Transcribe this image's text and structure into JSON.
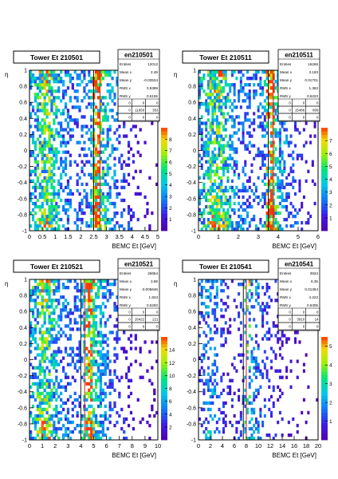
{
  "chart_data": [
    {
      "type": "heatmap",
      "title": "Tower Et 210501",
      "xlabel": "BEMC Et [GeV]",
      "ylabel": "η",
      "xlim": [
        0,
        5
      ],
      "ylim": [
        -1,
        1
      ],
      "x_ticks": [
        "0",
        "0.5",
        "1",
        "1.5",
        "2",
        "2.5",
        "3",
        "3.5",
        "4",
        "4.5",
        "5"
      ],
      "y_ticks": [
        "-1",
        "-0.8",
        "-0.6",
        "-0.4",
        "-0.2",
        "0",
        "0.2",
        "0.4",
        "0.6",
        "0.8",
        "1"
      ],
      "z_ticks": [
        "1",
        "2",
        "3",
        "4",
        "5",
        "6",
        "7",
        "8"
      ],
      "zlim": [
        0,
        9
      ],
      "cut_lines_x": [
        2.5,
        2.75
      ],
      "hot_band_x": 2.6,
      "stats": {
        "name": "en210501",
        "rows": [
          [
            "Entries",
            "12012"
          ],
          [
            "Mean x",
            "2.49"
          ],
          [
            "Mean y",
            "-0.03534"
          ],
          [
            "RMS x",
            "0.9399"
          ],
          [
            "RMS y",
            "0.6155"
          ]
        ],
        "grid": [
          [
            "0",
            "0",
            "0"
          ],
          [
            "0",
            "11650",
            "353"
          ],
          [
            "0",
            "0",
            "0"
          ]
        ]
      }
    },
    {
      "type": "heatmap",
      "title": "Tower Et 210511",
      "xlabel": "BEMC Et [GeV]",
      "ylabel": "η",
      "xlim": [
        0,
        6
      ],
      "ylim": [
        -1,
        1
      ],
      "x_ticks": [
        "0",
        "1",
        "2",
        "3",
        "4",
        "5",
        "6"
      ],
      "y_ticks": [
        "-1",
        "-0.8",
        "-0.6",
        "-0.4",
        "-0.2",
        "0",
        "0.2",
        "0.4",
        "0.6",
        "0.8",
        "1"
      ],
      "z_ticks": [
        "1",
        "2",
        "3",
        "4",
        "5",
        "6",
        "7"
      ],
      "zlim": [
        0,
        8
      ],
      "cut_lines_x": [
        3.5,
        3.75
      ],
      "hot_band_x": 3.6,
      "stats": {
        "name": "en210511",
        "rows": [
          [
            "Entries",
            "16266"
          ],
          [
            "Mean x",
            "3.193"
          ],
          [
            "Mean y",
            "0.01701"
          ],
          [
            "RMS x",
            "1.382"
          ],
          [
            "RMS y",
            "0.6223"
          ]
        ],
        "grid": [
          [
            "0",
            "0",
            "0"
          ],
          [
            "0",
            "15486",
            "809"
          ],
          [
            "0",
            "0",
            "0"
          ]
        ]
      }
    },
    {
      "type": "heatmap",
      "title": "Tower Et 210521",
      "xlabel": "BEMC Et [GeV]",
      "ylabel": "η",
      "xlim": [
        0,
        10
      ],
      "ylim": [
        -1,
        1
      ],
      "x_ticks": [
        "0",
        "1",
        "2",
        "3",
        "4",
        "5",
        "6",
        "7",
        "8",
        "9",
        "10"
      ],
      "y_ticks": [
        "-1",
        "-0.8",
        "-0.6",
        "-0.4",
        "-0.2",
        "0",
        "0.2",
        "0.4",
        "0.6",
        "0.8",
        "1"
      ],
      "z_ticks": [
        "2",
        "4",
        "6",
        "8",
        "10",
        "12",
        "14"
      ],
      "zlim": [
        0,
        16
      ],
      "cut_lines_x": [
        4.0,
        4.3
      ],
      "hot_band_x": 4.6,
      "stats": {
        "name": "en210521",
        "rows": [
          [
            "Entries",
            "26654"
          ],
          [
            "Mean x",
            "3.89"
          ],
          [
            "Mean y",
            "-0.005646"
          ],
          [
            "RMS x",
            "1.823"
          ],
          [
            "RMS y",
            "0.6293"
          ]
        ],
        "grid": [
          [
            "0",
            "0",
            "0"
          ],
          [
            "0",
            "26422",
            "221"
          ],
          [
            "0",
            "0",
            "0"
          ]
        ]
      }
    },
    {
      "type": "heatmap",
      "title": "Tower Et 210541",
      "xlabel": "BEMC Et [GeV]",
      "ylabel": "η",
      "xlim": [
        0,
        20
      ],
      "ylim": [
        -1,
        1
      ],
      "x_ticks": [
        "0",
        "2",
        "4",
        "6",
        "8",
        "10",
        "12",
        "14",
        "16",
        "18",
        "20"
      ],
      "y_ticks": [
        "-1",
        "-0.8",
        "-0.6",
        "-0.4",
        "-0.2",
        "0",
        "0.2",
        "0.4",
        "0.6",
        "0.8",
        "1"
      ],
      "z_ticks": [
        "1",
        "2",
        "3",
        "4",
        "5"
      ],
      "zlim": [
        0,
        5.5
      ],
      "cut_lines_x": [
        7.5,
        8.0
      ],
      "hot_band_x": 8.2,
      "stats": {
        "name": "en210541",
        "rows": [
          [
            "Entries",
            "3924"
          ],
          [
            "Mean x",
            "6.35"
          ],
          [
            "Mean y",
            "0.01364"
          ],
          [
            "RMS x",
            "4.222"
          ],
          [
            "RMS y",
            "0.6305"
          ]
        ],
        "grid": [
          [
            "0",
            "0",
            "0"
          ],
          [
            "0",
            "3910",
            "14"
          ],
          [
            "0",
            "0",
            "0"
          ]
        ]
      }
    }
  ]
}
